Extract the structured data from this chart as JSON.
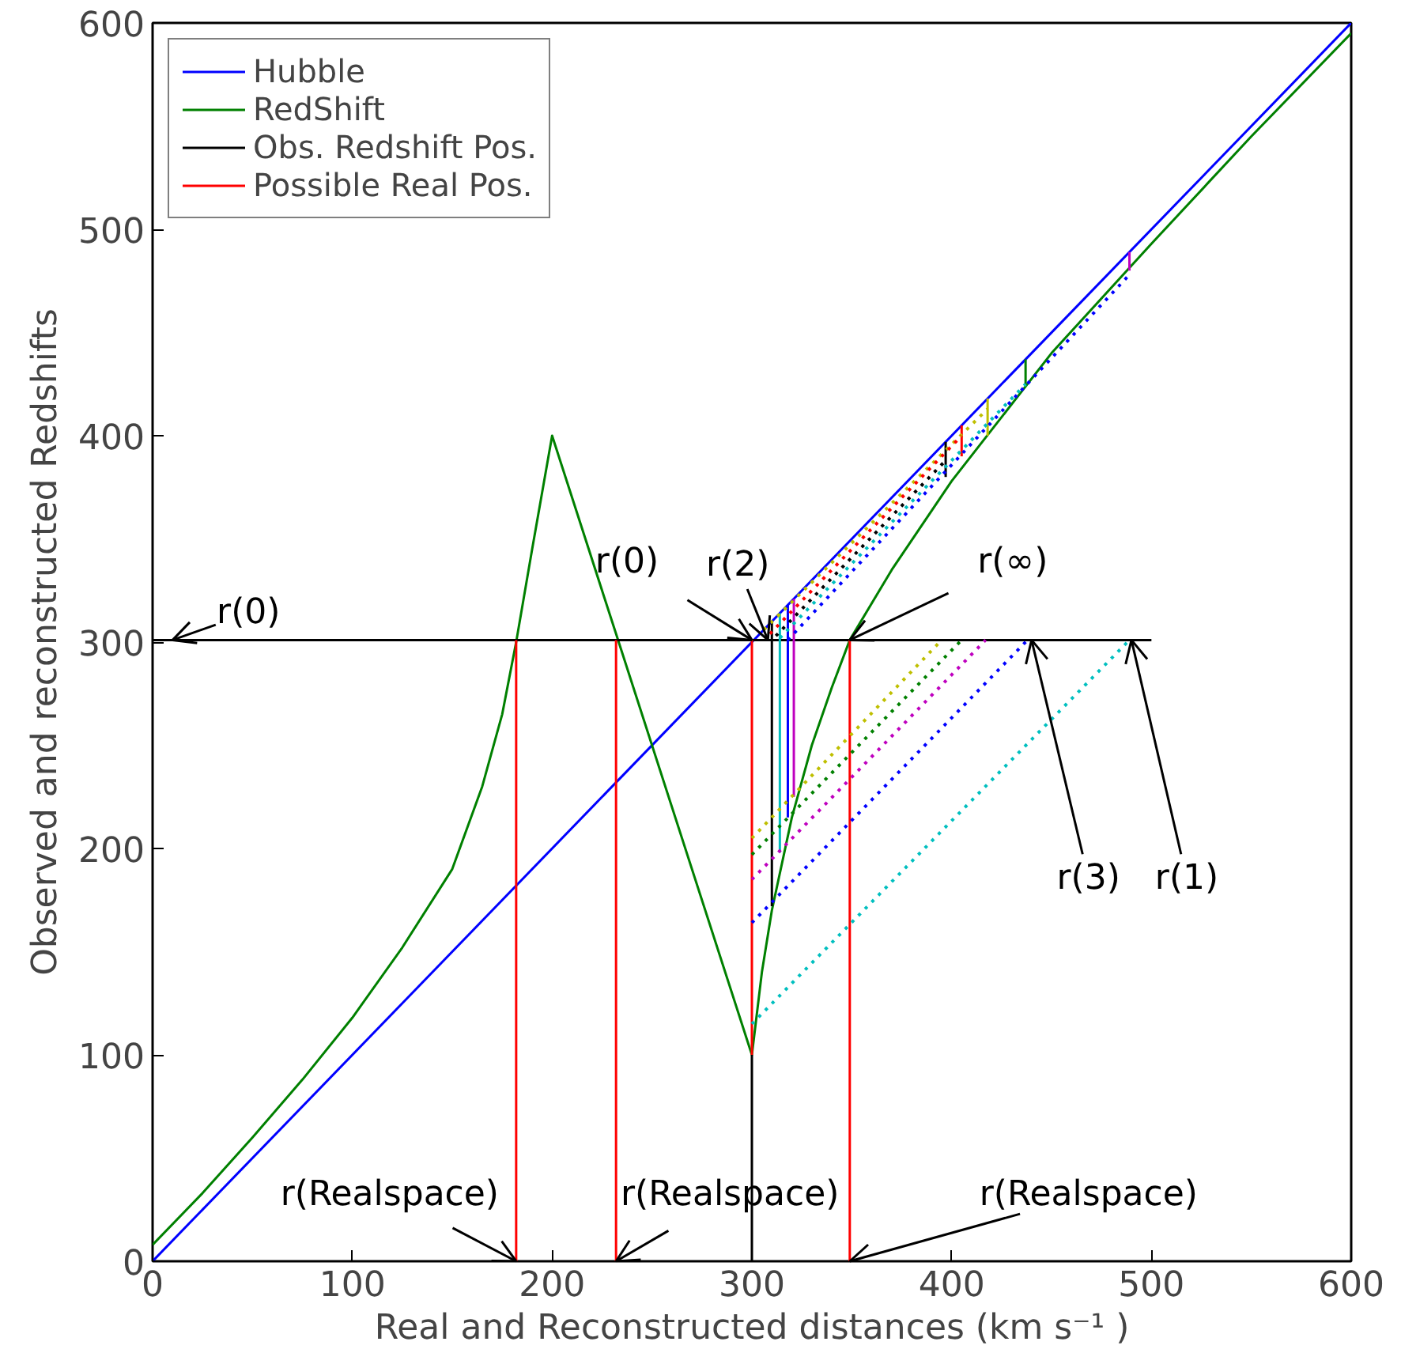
{
  "chart_data": {
    "type": "line",
    "xlabel": "Real and Reconstructed distances (km s⁻¹ )",
    "ylabel": "Observed and reconstructed Redshifts",
    "xlim": [
      0,
      600
    ],
    "ylim": [
      0,
      600
    ],
    "xticks": [
      0,
      100,
      200,
      300,
      400,
      500,
      600
    ],
    "yticks": [
      0,
      100,
      200,
      300,
      400,
      500,
      600
    ],
    "grid": false,
    "legend": "top left",
    "series": [
      {
        "name": "Hubble",
        "color": "#0000ff",
        "x": [
          0,
          600
        ],
        "values": [
          0,
          600
        ]
      },
      {
        "name": "RedShift",
        "color": "#008000",
        "x": [
          0,
          25,
          50,
          75,
          100,
          125,
          150,
          165,
          175,
          182,
          190,
          200,
          232,
          300,
          305,
          310,
          320,
          330,
          340,
          349,
          370,
          400,
          450,
          500,
          550,
          600
        ],
        "values": [
          8,
          33,
          60,
          88,
          118,
          152,
          190,
          230,
          265,
          300,
          345,
          400,
          304,
          100,
          140,
          170,
          215,
          250,
          278,
          301,
          335,
          378,
          440,
          493,
          545,
          595
        ]
      },
      {
        "name": "Obs. Redshift Pos.",
        "color": "#000000",
        "x": [
          0,
          500
        ],
        "values": [
          301,
          301
        ]
      },
      {
        "color": "#000000",
        "x": [
          300,
          300
        ],
        "values": [
          0,
          100
        ]
      },
      {
        "color": "#000000",
        "x": [
          310,
          310
        ],
        "values": [
          172,
          310
        ]
      },
      {
        "name": "Possible Real Pos.",
        "color": "#ff0000",
        "x": [
          182,
          182
        ],
        "values": [
          0,
          301
        ]
      },
      {
        "color": "#ff0000",
        "x": [
          232,
          232
        ],
        "values": [
          0,
          301
        ]
      },
      {
        "color": "#ff0000",
        "x": [
          300,
          300
        ],
        "values": [
          100,
          301
        ]
      },
      {
        "color": "#ff0000",
        "x": [
          349,
          349
        ],
        "values": [
          0,
          301
        ]
      },
      {
        "color": "#ff0000",
        "x": [
          405,
          405
        ],
        "values": [
          390,
          405
        ]
      },
      {
        "color": "#00bfbf",
        "x": [
          314,
          314
        ],
        "values": [
          198,
          314
        ]
      },
      {
        "color": "#0000ff",
        "x": [
          318,
          318
        ],
        "values": [
          215,
          318
        ]
      },
      {
        "color": "#bf00bf",
        "x": [
          321,
          321,
          null,
          489,
          489
        ],
        "values": [
          225,
          321,
          null,
          480,
          489
        ]
      },
      {
        "color": "#000000",
        "x": [
          397,
          397
        ],
        "values": [
          380,
          397
        ]
      },
      {
        "color": "#bfbf00",
        "x": [
          418,
          418
        ],
        "values": [
          400,
          418
        ]
      },
      {
        "color": "#008000",
        "x": [
          437,
          437
        ],
        "values": [
          425,
          437
        ]
      },
      {
        "color": "#00bfbf",
        "line_style": "dotted",
        "x": [
          300,
          489
        ],
        "values": [
          115,
          301
        ]
      },
      {
        "color": "#0000ff",
        "line_style": "dotted",
        "x": [
          300,
          438
        ],
        "values": [
          164,
          301
        ]
      },
      {
        "color": "#bf00bf",
        "line_style": "dotted",
        "x": [
          300,
          417
        ],
        "values": [
          185,
          301
        ]
      },
      {
        "color": "#008000",
        "line_style": "dotted",
        "x": [
          300,
          405
        ],
        "values": [
          197,
          301
        ]
      },
      {
        "color": "#bfbf00",
        "line_style": "dotted",
        "x": [
          300,
          395
        ],
        "values": [
          205,
          301
        ]
      },
      {
        "color": "#bfbf00",
        "line_style": "dotted",
        "x": [
          306,
          418
        ],
        "values": [
          306,
          413
        ]
      },
      {
        "color": "#ff0000",
        "line_style": "dotted",
        "x": [
          309,
          405
        ],
        "values": [
          304,
          400
        ]
      },
      {
        "color": "#000000",
        "line_style": "dotted",
        "x": [
          312,
          397
        ],
        "values": [
          303,
          388
        ]
      },
      {
        "color": "#00bfbf",
        "line_style": "dotted",
        "x": [
          314,
          437
        ],
        "values": [
          302,
          425
        ]
      },
      {
        "color": "#0000ff",
        "line_style": "dotted",
        "x": [
          318,
          489
        ],
        "values": [
          301,
          478
        ]
      }
    ],
    "annotations": [
      {
        "text": "r(0)",
        "x": 10,
        "y": 301
      },
      {
        "text": "r(0)",
        "x": 300,
        "y": 301
      },
      {
        "text": "r(2)",
        "x": 308,
        "y": 301
      },
      {
        "text": "r(∞)",
        "x": 349,
        "y": 301
      },
      {
        "text": "r(3)",
        "x": 440,
        "y": 301
      },
      {
        "text": "r(1)",
        "x": 490,
        "y": 301
      },
      {
        "text": "r(Realspace)",
        "x": 182,
        "y": 0
      },
      {
        "text": "r(Realspace)",
        "x": 232,
        "y": 0
      },
      {
        "text": "r(Realspace)",
        "x": 349,
        "y": 0
      }
    ]
  }
}
